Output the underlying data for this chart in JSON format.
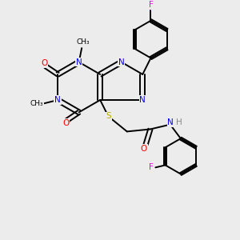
{
  "bg_color": "#ececec",
  "atom_colors": {
    "C": "#000000",
    "N": "#0000ee",
    "O": "#ee0000",
    "S": "#bbaa00",
    "F": "#ee00ee",
    "H": "#888888"
  },
  "bond_lw": 1.4,
  "font_size": 7.5
}
